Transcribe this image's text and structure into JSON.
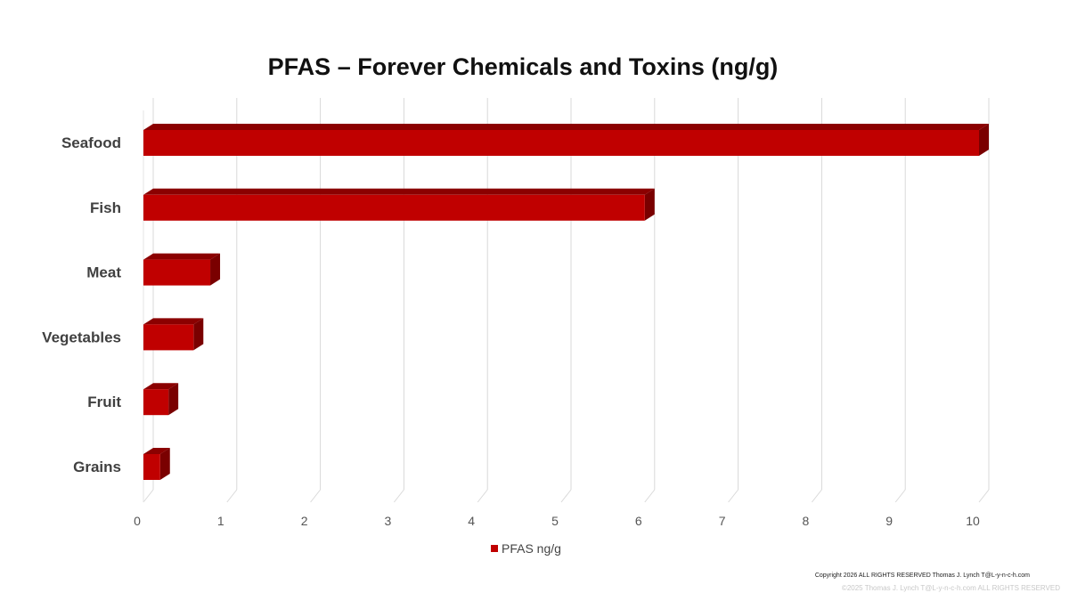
{
  "chart_data": {
    "type": "bar",
    "orientation": "horizontal",
    "title": "PFAS – Forever Chemicals and Toxins (ng/g)",
    "categories": [
      "Seafood",
      "Fish",
      "Meat",
      "Vegetables",
      "Fruit",
      "Grains"
    ],
    "series": [
      {
        "name": "PFAS ng/g",
        "values": [
          10,
          6,
          0.8,
          0.6,
          0.3,
          0.2
        ]
      }
    ],
    "xlim": [
      0,
      10
    ],
    "x_ticks": [
      "0",
      "1",
      "2",
      "3",
      "4",
      "5",
      "6",
      "7",
      "8",
      "9",
      "10"
    ],
    "grid": true,
    "style_3d": true,
    "legend_position": "bottom",
    "bar_color": "#c00000",
    "bar_top_color": "#8b0000",
    "bar_side_color": "#7a0000"
  },
  "footer": {
    "copyright": "Copyright 2026 ALL RIGHTS RESERVED Thomas J. Lynch T@L-y-n-c-h.com",
    "watermark": "©2025 Thomas J. Lynch T@L-y-n-c-h.com ALL RIGHTS RESERVED"
  }
}
